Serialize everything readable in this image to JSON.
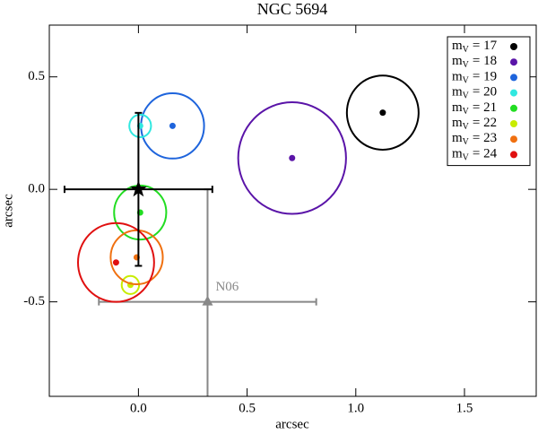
{
  "chart_data": {
    "type": "scatter",
    "title": "NGC 5694",
    "xlabel": "arcsec",
    "ylabel": "arcsec",
    "xlim": [
      -0.41,
      1.83
    ],
    "ylim": [
      -0.92,
      0.73
    ],
    "xticks": [
      {
        "value": 0,
        "label": "0.0"
      },
      0.5,
      {
        "value": 1,
        "label": "1.0"
      },
      1.5
    ],
    "yticks": [
      -0.5,
      {
        "value": 0,
        "label": "0.0"
      },
      0.5
    ],
    "legend_symbol": {
      "main": "m",
      "sub": "V"
    },
    "legend": "upper right",
    "series": [
      {
        "name": "= 17",
        "color": "#000000",
        "x": 1.124,
        "y": 0.341,
        "radius": 0.165
      },
      {
        "name": "= 18",
        "color": "#5a14a8",
        "x": 0.707,
        "y": 0.139,
        "radius": 0.248
      },
      {
        "name": "= 19",
        "color": "#1e64dc",
        "x": 0.157,
        "y": 0.282,
        "radius": 0.145
      },
      {
        "name": "= 20",
        "color": "#30e8e0",
        "x": 0.008,
        "y": 0.282,
        "radius": 0.05
      },
      {
        "name": "= 21",
        "color": "#22dd22",
        "x": 0.008,
        "y": -0.103,
        "radius": 0.12
      },
      {
        "name": "= 22",
        "color": "#c8ec00",
        "x": -0.037,
        "y": -0.425,
        "radius": 0.04
      },
      {
        "name": "= 23",
        "color": "#f07010",
        "x": -0.008,
        "y": -0.302,
        "radius": 0.12
      },
      {
        "name": "= 24",
        "color": "#e01010",
        "x": -0.103,
        "y": -0.325,
        "radius": 0.175
      }
    ],
    "center": {
      "x": 0,
      "y": 0,
      "xerr": 0.34,
      "yerr": 0.34,
      "color": "#000000"
    },
    "reference": {
      "label": "N06",
      "x": 0.318,
      "y": -0.5,
      "xerr": 0.5,
      "yerr": 0.5,
      "color": "#888888"
    }
  }
}
